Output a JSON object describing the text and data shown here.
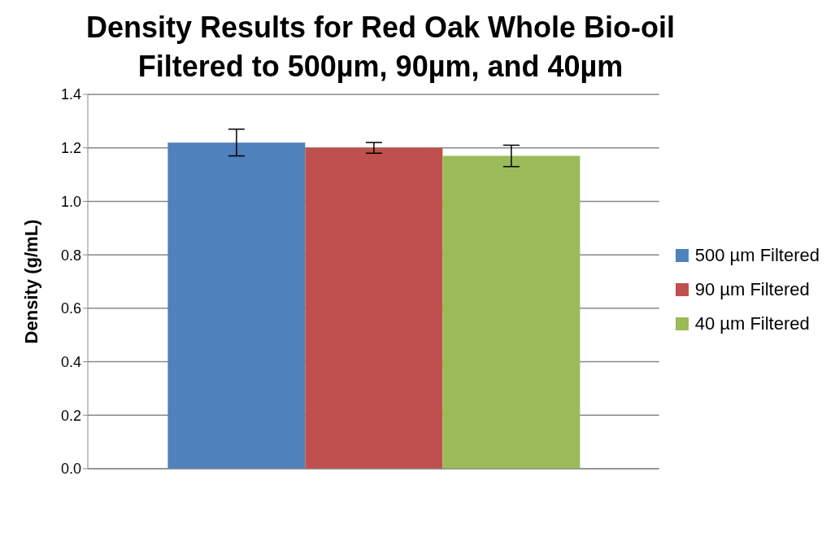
{
  "chart_data": {
    "type": "bar",
    "title": "Density Results for Red Oak Whole Bio-oil Filtered to 500µm, 90µm, and 40µm",
    "ylabel": "Density (g/mL)",
    "categories": [
      null
    ],
    "series": [
      {
        "name": "500 µm Filtered",
        "color": "#4f81bd",
        "values": [
          1.22
        ],
        "errors": [
          0.05
        ]
      },
      {
        "name": "90 µm Filtered",
        "color": "#c0504d",
        "values": [
          1.2
        ],
        "errors": [
          0.02
        ]
      },
      {
        "name": "40 µm Filtered",
        "color": "#9bbb59",
        "values": [
          1.17
        ],
        "errors": [
          0.04
        ]
      }
    ],
    "ylim": [
      0,
      1.4
    ],
    "yticks": [
      {
        "value": 0,
        "label": "0.0"
      },
      0.2,
      0.4,
      0.6,
      0.8,
      {
        "value": 1,
        "label": "1.0"
      },
      1.2,
      1.4
    ],
    "grid": "y",
    "legend": "right"
  }
}
